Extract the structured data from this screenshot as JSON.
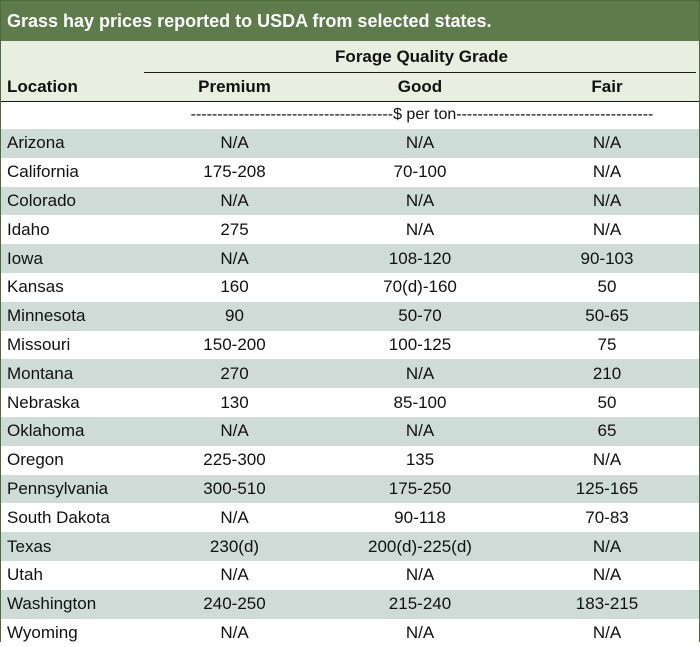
{
  "title": "Grass hay prices reported to USDA from selected states.",
  "group_header": "Forage Quality Grade",
  "columns": {
    "location": "Location",
    "premium": "Premium",
    "good": "Good",
    "fair": "Fair"
  },
  "units": "--------------------------------------$ per ton-------------------------------------",
  "rows": [
    {
      "location": "Arizona",
      "premium": "N/A",
      "good": "N/A",
      "fair": "N/A"
    },
    {
      "location": "California",
      "premium": "175-208",
      "good": "70-100",
      "fair": "N/A"
    },
    {
      "location": "Colorado",
      "premium": "N/A",
      "good": "N/A",
      "fair": "N/A"
    },
    {
      "location": "Idaho",
      "premium": "275",
      "good": "N/A",
      "fair": "N/A"
    },
    {
      "location": "Iowa",
      "premium": "N/A",
      "good": "108-120",
      "fair": "90-103"
    },
    {
      "location": "Kansas",
      "premium": "160",
      "good": "70(d)-160",
      "fair": "50"
    },
    {
      "location": "Minnesota",
      "premium": "90",
      "good": "50-70",
      "fair": "50-65"
    },
    {
      "location": "Missouri",
      "premium": "150-200",
      "good": "100-125",
      "fair": "75"
    },
    {
      "location": "Montana",
      "premium": "270",
      "good": "N/A",
      "fair": "210"
    },
    {
      "location": "Nebraska",
      "premium": "130",
      "good": "85-100",
      "fair": "50"
    },
    {
      "location": "Oklahoma",
      "premium": "N/A",
      "good": "N/A",
      "fair": "65"
    },
    {
      "location": "Oregon",
      "premium": "225-300",
      "good": "135",
      "fair": "N/A"
    },
    {
      "location": "Pennsylvania",
      "premium": "300-510",
      "good": "175-250",
      "fair": "125-165"
    },
    {
      "location": "South Dakota",
      "premium": "N/A",
      "good": "90-118",
      "fair": "70-83"
    },
    {
      "location": "Texas",
      "premium": "230(d)",
      "good": "200(d)-225(d)",
      "fair": "N/A"
    },
    {
      "location": "Utah",
      "premium": "N/A",
      "good": "N/A",
      "fair": "N/A"
    },
    {
      "location": "Washington",
      "premium": "240-250",
      "good": "215-240",
      "fair": "183-215"
    },
    {
      "location": "Wyoming",
      "premium": "N/A",
      "good": "N/A",
      "fair": "N/A"
    }
  ]
}
